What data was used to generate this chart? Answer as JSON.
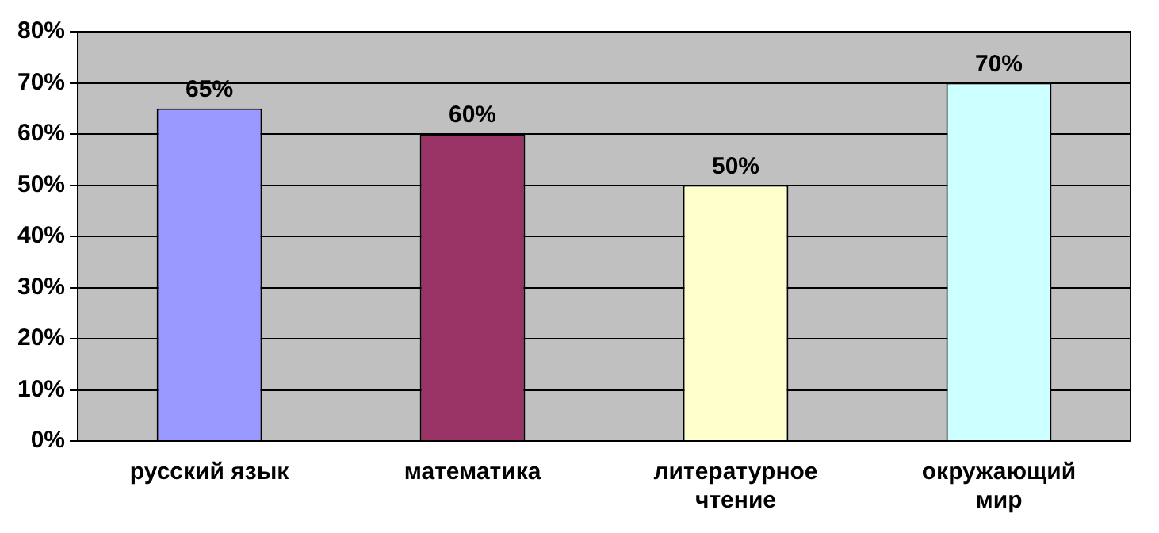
{
  "chart_data": {
    "type": "bar",
    "categories": [
      "русский язык",
      "математика",
      "литературное чтение",
      "окружающий мир"
    ],
    "values": [
      65,
      60,
      50,
      70
    ],
    "colors": [
      "#9999ff",
      "#993366",
      "#ffffcc",
      "#ccffff"
    ],
    "value_labels": [
      "65%",
      "60%",
      "50%",
      "70%"
    ],
    "ylim": [
      0,
      80
    ],
    "yticks": [
      {
        "value": 0,
        "label": "0%"
      },
      {
        "value": 10,
        "label": "10%"
      },
      {
        "value": 20,
        "label": "20%"
      },
      {
        "value": 30,
        "label": "30%"
      },
      {
        "value": 40,
        "label": "40%"
      },
      {
        "value": 50,
        "label": "50%"
      },
      {
        "value": 60,
        "label": "60%"
      },
      {
        "value": 70,
        "label": "70%"
      },
      {
        "value": 80,
        "label": "80%"
      }
    ],
    "grid": "y",
    "legend": false
  }
}
